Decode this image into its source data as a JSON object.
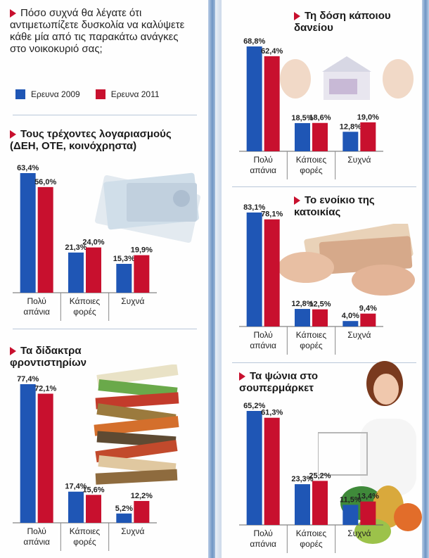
{
  "intro": {
    "question": "Πόσο συχνά θα λέγατε ότι αντιμετωπίζετε δυσκολία να καλύψετε κάθε μία από τις παρακάτω ανάγκες στο νοικοκυριό σας;"
  },
  "legend": {
    "items": [
      {
        "label": "Ερευνα 2009",
        "color": "#1f56b5"
      },
      {
        "label": "Ερευνα 2011",
        "color": "#c8102e"
      }
    ]
  },
  "colors": {
    "s2009": "#1f56b5",
    "s2011": "#c8102e",
    "accent": "#c8102e"
  },
  "chart_data": [
    {
      "type": "bar",
      "title": "Τους τρέχοντες λογαριασμούς (ΔΕΗ, ΟΤΕ, κοινόχρηστα)",
      "categories": [
        "Πολύ απάνια",
        "Κάποιες φορές",
        "Συχνά"
      ],
      "series": [
        {
          "name": "Ερευνα 2009",
          "values": [
            63.4,
            21.3,
            15.3
          ]
        },
        {
          "name": "Ερευνα 2011",
          "values": [
            56.0,
            24.0,
            19.9
          ]
        }
      ],
      "labels": [
        [
          "63,4",
          "21,3",
          "15,3"
        ],
        [
          "56,0",
          "24,0",
          "19,9"
        ]
      ],
      "unit": "%"
    },
    {
      "type": "bar",
      "title": "Τα δίδακτρα φροντιστηρίων",
      "categories": [
        "Πολύ απάνια",
        "Κάποιες φορές",
        "Συχνά"
      ],
      "series": [
        {
          "name": "Ερευνα 2009",
          "values": [
            77.4,
            17.4,
            5.2
          ]
        },
        {
          "name": "Ερευνα 2011",
          "values": [
            72.1,
            15.6,
            12.2
          ]
        }
      ],
      "labels": [
        [
          "77,4",
          "17,4",
          "5,2"
        ],
        [
          "72,1",
          "15,6",
          "12,2"
        ]
      ],
      "unit": "%"
    },
    {
      "type": "bar",
      "title": "Τη δόση κάποιου δανείου",
      "categories": [
        "Πολύ απάνια",
        "Κάποιες φορές",
        "Συχνά"
      ],
      "series": [
        {
          "name": "Ερευνα 2009",
          "values": [
            68.8,
            18.5,
            12.8
          ]
        },
        {
          "name": "Ερευνα 2011",
          "values": [
            62.4,
            18.6,
            19.0
          ]
        }
      ],
      "labels": [
        [
          "68,8",
          "18,5",
          "12,8"
        ],
        [
          "62,4",
          "18,6",
          "19,0"
        ]
      ],
      "unit": "%"
    },
    {
      "type": "bar",
      "title": "Το ενοίκιο της κατοικίας",
      "categories": [
        "Πολύ απάνια",
        "Κάποιες φορές",
        "Συχνά"
      ],
      "series": [
        {
          "name": "Ερευνα 2009",
          "values": [
            83.1,
            12.8,
            4.0
          ]
        },
        {
          "name": "Ερευνα 2011",
          "values": [
            78.1,
            12.5,
            9.4
          ]
        }
      ],
      "labels": [
        [
          "83,1",
          "12,8",
          "4,0"
        ],
        [
          "78,1",
          "12,5",
          "9,4"
        ]
      ],
      "unit": "%"
    },
    {
      "type": "bar",
      "title": "Τα ψώνια στο σουπερμάρκετ",
      "categories": [
        "Πολύ απάνια",
        "Κάποιες φορές",
        "Συχνά"
      ],
      "series": [
        {
          "name": "Ερευνα 2009",
          "values": [
            65.2,
            23.3,
            11.5
          ]
        },
        {
          "name": "Ερευνα 2011",
          "values": [
            61.3,
            25.2,
            13.4
          ]
        }
      ],
      "labels": [
        [
          "65,2",
          "23,3",
          "11,5"
        ],
        [
          "61,3",
          "25,2",
          "13,4"
        ]
      ],
      "unit": "%"
    }
  ]
}
